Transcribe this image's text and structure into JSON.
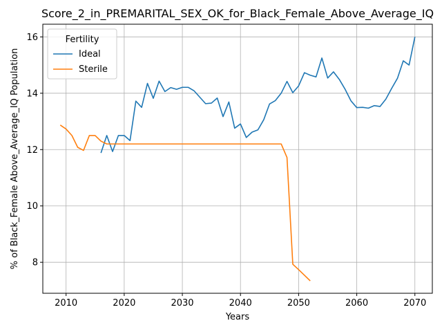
{
  "chart_data": {
    "type": "line",
    "title": "Score_2_in_PREMARITAL_SEX_OK_for_Black_Female_Above_Average_IQ",
    "xlabel": "Years",
    "ylabel": "% of Black_Female Above_Average_IQ Population",
    "xlim": [
      2006,
      2073
    ],
    "ylim": [
      6.9,
      16.45
    ],
    "xticks": [
      2010,
      2020,
      2030,
      2040,
      2050,
      2060,
      2070
    ],
    "yticks": [
      8,
      10,
      12,
      14,
      16
    ],
    "grid": true,
    "legend": {
      "title": "Fertility",
      "placement": "top-left"
    },
    "series": [
      {
        "name": "Ideal",
        "color": "#1f77b4",
        "x": [
          2016,
          2017,
          2018,
          2019,
          2020,
          2021,
          2022,
          2023,
          2024,
          2025,
          2026,
          2027,
          2028,
          2029,
          2030,
          2031,
          2032,
          2033,
          2034,
          2035,
          2036,
          2037,
          2038,
          2039,
          2040,
          2041,
          2042,
          2043,
          2044,
          2045,
          2046,
          2047,
          2048,
          2049,
          2050,
          2051,
          2052,
          2053,
          2054,
          2055,
          2056,
          2057,
          2058,
          2059,
          2060,
          2061,
          2062,
          2063,
          2064,
          2065,
          2066,
          2067,
          2068,
          2069,
          2070
        ],
        "y": [
          11.88,
          12.5,
          11.93,
          12.5,
          12.5,
          12.32,
          13.72,
          13.5,
          14.35,
          13.82,
          14.43,
          14.06,
          14.2,
          14.14,
          14.21,
          14.21,
          14.09,
          13.86,
          13.63,
          13.65,
          13.83,
          13.17,
          13.69,
          12.76,
          12.91,
          12.43,
          12.62,
          12.7,
          13.06,
          13.62,
          13.74,
          14.0,
          14.42,
          14.02,
          14.26,
          14.73,
          14.64,
          14.58,
          15.25,
          14.54,
          14.76,
          14.49,
          14.14,
          13.73,
          13.49,
          13.5,
          13.47,
          13.56,
          13.53,
          13.79,
          14.17,
          14.53,
          15.15,
          15.0,
          16.0
        ]
      },
      {
        "name": "Sterile",
        "color": "#ff7f0e",
        "x": [
          2009,
          2010,
          2011,
          2012,
          2013,
          2014,
          2015,
          2016,
          2017,
          2018,
          2019,
          2020,
          2021,
          2022,
          2023,
          2024,
          2025,
          2026,
          2027,
          2028,
          2029,
          2030,
          2031,
          2032,
          2033,
          2034,
          2035,
          2036,
          2037,
          2038,
          2039,
          2040,
          2041,
          2042,
          2043,
          2044,
          2045,
          2046,
          2047,
          2048,
          2049,
          2050,
          2051,
          2052
        ],
        "y": [
          12.87,
          12.73,
          12.5,
          12.08,
          11.97,
          12.5,
          12.5,
          12.3,
          12.2,
          12.2,
          12.2,
          12.2,
          12.2,
          12.2,
          12.2,
          12.2,
          12.2,
          12.2,
          12.2,
          12.2,
          12.2,
          12.2,
          12.2,
          12.2,
          12.2,
          12.2,
          12.2,
          12.2,
          12.2,
          12.2,
          12.2,
          12.2,
          12.2,
          12.2,
          12.2,
          12.2,
          12.2,
          12.2,
          12.2,
          11.72,
          7.93,
          7.74,
          7.54,
          7.34
        ]
      }
    ]
  }
}
